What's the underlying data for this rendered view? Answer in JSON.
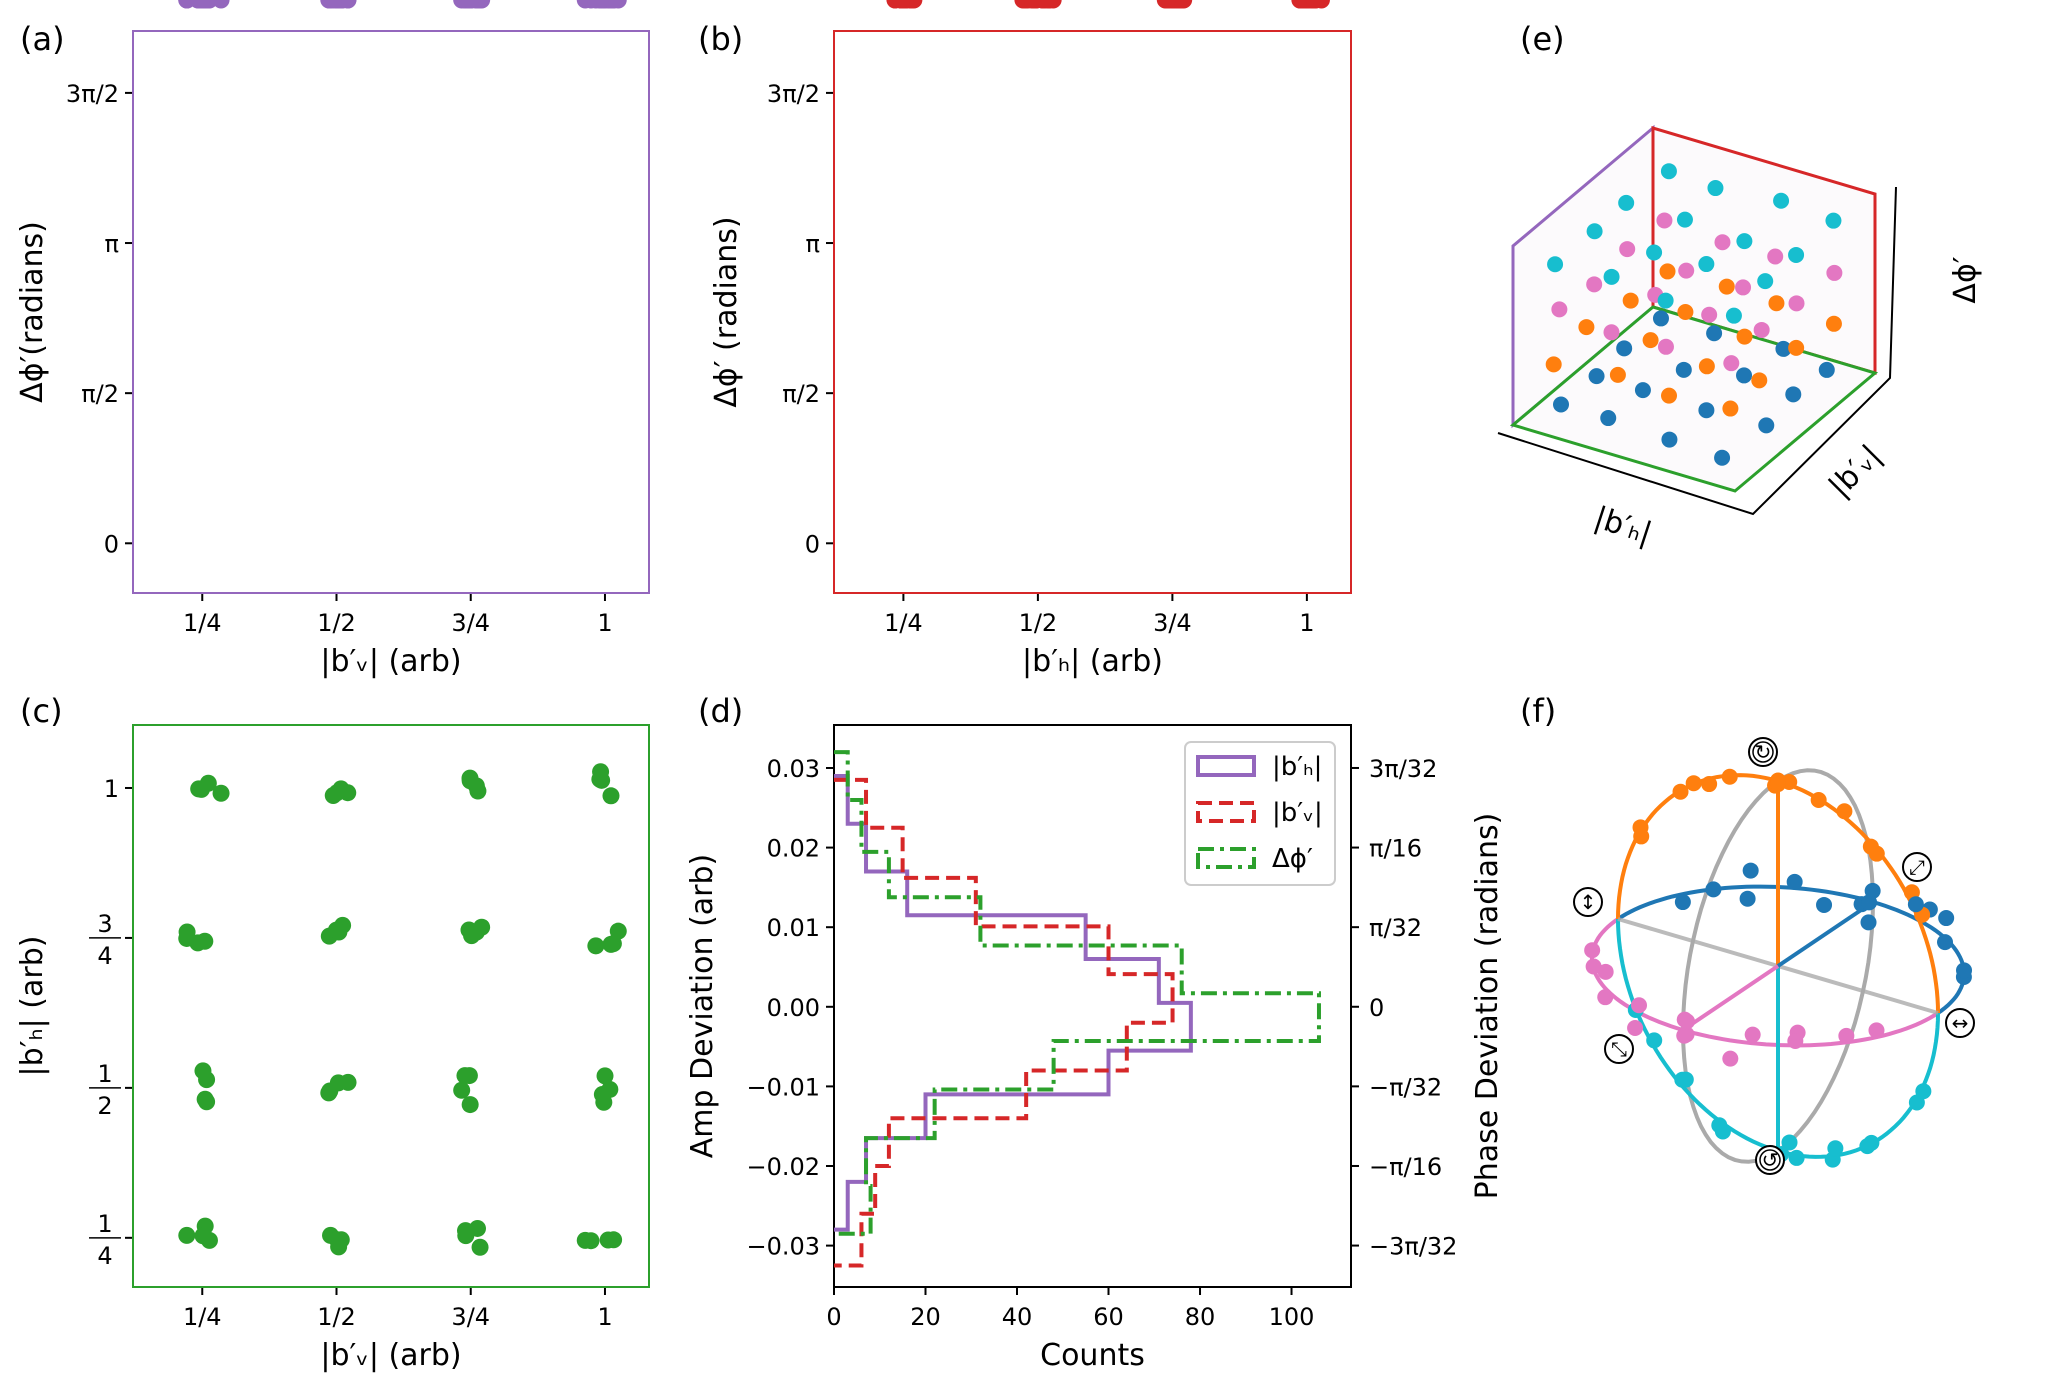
{
  "states": {
    "amplitude_levels": [
      0.25,
      0.5,
      0.75,
      1
    ],
    "phase_levels": [
      0,
      1.5708,
      3.1416,
      4.7124
    ],
    "phase_colors": [
      "#1f77b4",
      "#ff7f0e",
      "#e377c2",
      "#17becf"
    ]
  },
  "chart_data": [
    {
      "panel": "(a)",
      "type": "scatter",
      "color": "#9467bd",
      "x_variable": "bv",
      "y_variable": "phase",
      "xlabel": "|b′ᵥ| (arb)",
      "ylabel": "Δϕ′(radians)",
      "x_ticks": [
        0.25,
        0.5,
        0.75,
        1
      ],
      "x_ticklabels": [
        "1/4",
        "1/2",
        "3/4",
        "1"
      ],
      "y_ticks": [
        0,
        1.5708,
        3.1416,
        4.7124
      ],
      "y_ticklabels": [
        "0",
        "π/2",
        "π",
        "3π/2"
      ],
      "xlim": [
        0.121,
        1.082
      ],
      "ylim": [
        -0.52,
        5.36
      ],
      "grid": false
    },
    {
      "panel": "(b)",
      "type": "scatter",
      "color": "#d62728",
      "x_variable": "bh",
      "y_variable": "phase",
      "xlabel": "|b′ₕ| (arb)",
      "ylabel": "Δϕ′ (radians)",
      "x_ticks": [
        0.25,
        0.5,
        0.75,
        1
      ],
      "x_ticklabels": [
        "1/4",
        "1/2",
        "3/4",
        "1"
      ],
      "y_ticks": [
        0,
        1.5708,
        3.1416,
        4.7124
      ],
      "y_ticklabels": [
        "0",
        "π/2",
        "π",
        "3π/2"
      ],
      "xlim": [
        0.121,
        1.082
      ],
      "ylim": [
        -0.52,
        5.36
      ],
      "grid": false
    },
    {
      "panel": "(c)",
      "type": "scatter",
      "color": "#2ca02c",
      "x_variable": "bv",
      "y_variable": "bh",
      "xlabel": "|b′ᵥ| (arb)",
      "ylabel": "|b′ₕ| (arb)",
      "x_ticks": [
        0.25,
        0.5,
        0.75,
        1
      ],
      "x_ticklabels": [
        "1/4",
        "1/2",
        "3/4",
        "1"
      ],
      "y_ticks": [
        0.25,
        0.5,
        0.75,
        1
      ],
      "y_ticklabels": [
        "1/4",
        "1/2",
        "3/4",
        "1"
      ],
      "xlim": [
        0.121,
        1.082
      ],
      "ylim": [
        0.168,
        1.105
      ],
      "grid": false
    },
    {
      "panel": "(d)",
      "type": "histogram",
      "orientation": "horizontal",
      "xlabel": "Counts",
      "ylabel": "Amp Deviation (arb)",
      "ylabel_right": "Phase Deviation (radians)",
      "x_ticks": [
        0,
        20,
        40,
        60,
        80,
        100
      ],
      "x_ticklabels": [
        "0",
        "20",
        "40",
        "60",
        "80",
        "100"
      ],
      "y_ticks": [
        -0.03,
        -0.02,
        -0.01,
        0,
        0.01,
        0.02,
        0.03
      ],
      "y_ticklabels": [
        "−0.03",
        "−0.02",
        "−0.01",
        "0.00",
        "0.01",
        "0.02",
        "0.03"
      ],
      "y_ticks_right": [
        -0.2945,
        -0.19635,
        -0.09817,
        0,
        0.09817,
        0.19635,
        0.2945
      ],
      "y_ticklabels_right": [
        "−3π/32",
        "−π/16",
        "−π/32",
        "0",
        "π/32",
        "π/16",
        "3π/32"
      ],
      "xlim": [
        0,
        113
      ],
      "ylim": [
        -0.0352,
        0.0354
      ],
      "ylim_right": [
        -0.3456,
        0.3475
      ],
      "legend_position": "top-right",
      "series": [
        {
          "name": "|b′ₕ|",
          "color": "#9467bd",
          "style": "solid",
          "axis": "left",
          "bin_edges": [
            0.029,
            0.023,
            0.017,
            0.0115,
            0.006,
            0.0005,
            -0.0055,
            -0.011,
            -0.0165,
            -0.022,
            -0.028
          ],
          "counts": [
            3,
            7,
            16,
            55,
            71,
            78,
            60,
            20,
            7,
            3
          ]
        },
        {
          "name": "|b′ᵥ|",
          "color": "#d62728",
          "style": "dashed",
          "axis": "left",
          "bin_edges": [
            0.0285,
            0.0225,
            0.0162,
            0.0101,
            0.0041,
            -0.002,
            -0.008,
            -0.014,
            -0.02,
            -0.026,
            -0.0325
          ],
          "counts": [
            7,
            15,
            31,
            60,
            74,
            64,
            42,
            12,
            9,
            6
          ]
        },
        {
          "name": "Δϕ′",
          "color": "#2ca02c",
          "style": "dashdot",
          "axis": "right",
          "bin_edges": [
            0.314,
            0.255,
            0.191,
            0.135,
            0.0756,
            0.0167,
            -0.0422,
            -0.102,
            -0.162,
            -0.221,
            -0.28
          ],
          "counts": [
            3,
            6,
            12,
            32,
            76,
            106,
            48,
            22,
            7,
            8
          ]
        }
      ]
    },
    {
      "panel": "(e)",
      "type": "scatter3d",
      "xlabel": "|b′ₕ|",
      "ylabel": "|b′ᵥ|",
      "zlabel": "Δϕ′",
      "wall_colors": {
        "bv_phase": "#9467bd",
        "bh_phase": "#d62728",
        "bh_bv": "#2ca02c"
      }
    },
    {
      "panel": "(f)",
      "type": "poincare-sphere",
      "circle_colors": {
        "equator_back": "#1f77b4",
        "equator_front": "#e377c2",
        "upper": "#ff7f0e",
        "lower": "#17becf",
        "meridian": "#aaaaaa"
      },
      "icons": [
        {
          "name": "right-circular-polarization-icon",
          "glyph": "↻"
        },
        {
          "name": "left-circular-polarization-icon",
          "glyph": "↺"
        },
        {
          "name": "vertical-polarization-icon",
          "glyph": "↕"
        },
        {
          "name": "horizontal-polarization-icon",
          "glyph": "↔"
        },
        {
          "name": "diagonal-polarization-icon",
          "glyph": "⤢"
        },
        {
          "name": "antidiagonal-polarization-icon",
          "glyph": "⤡"
        }
      ]
    }
  ]
}
